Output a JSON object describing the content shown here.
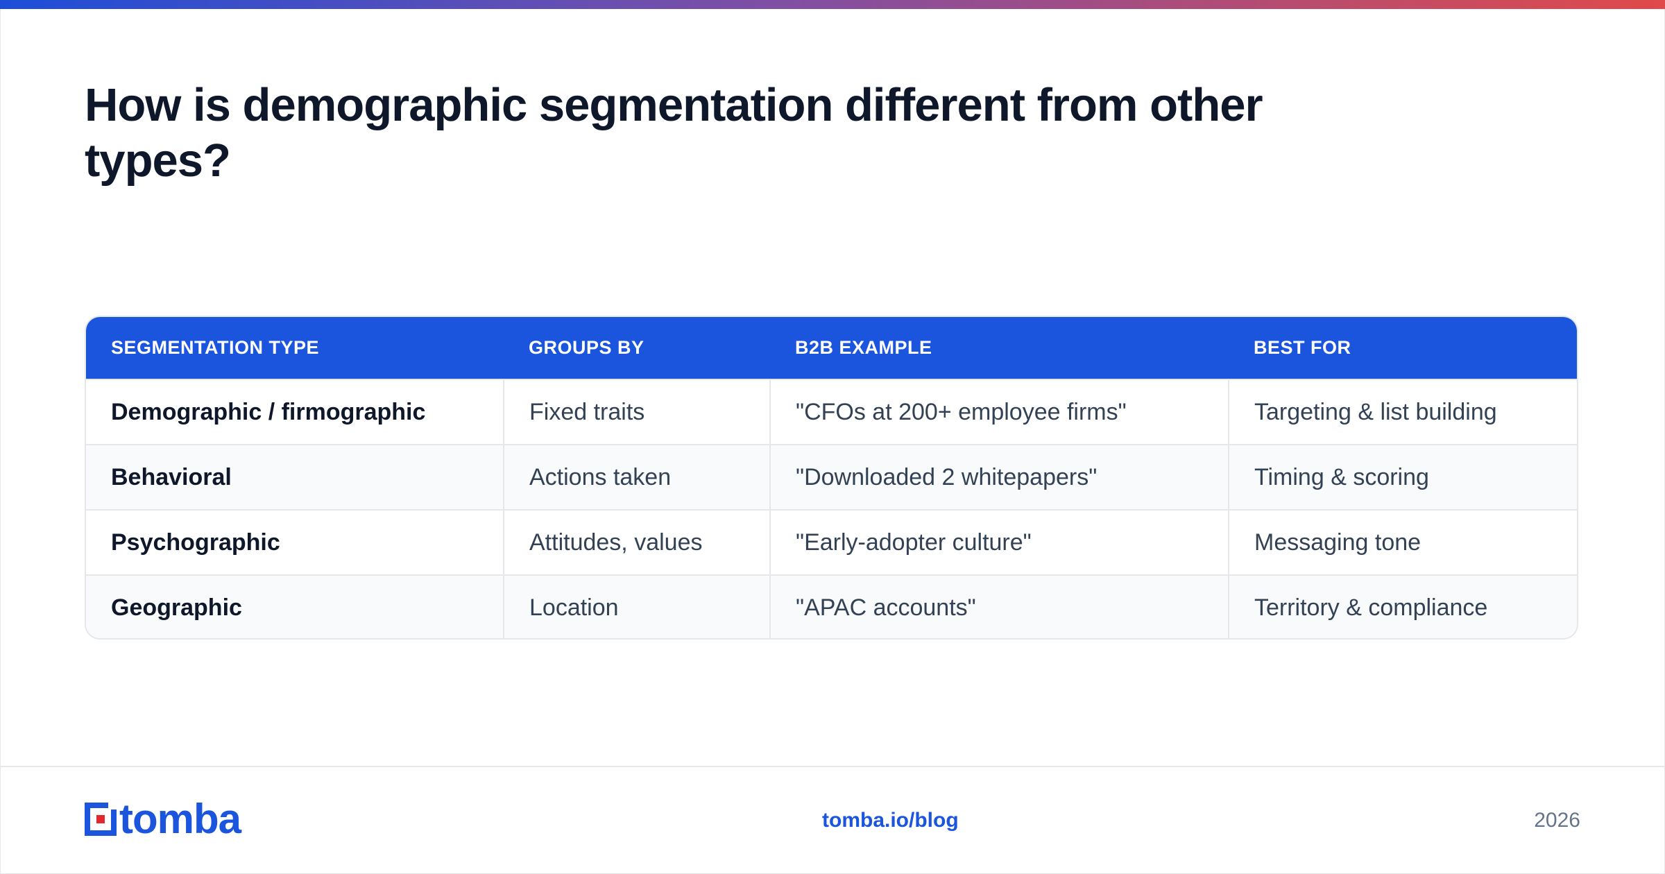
{
  "page": {
    "title": "How is demographic segmentation different from other types?"
  },
  "table": {
    "headers": [
      "SEGMENTATION TYPE",
      "GROUPS BY",
      "B2B EXAMPLE",
      "BEST FOR"
    ],
    "rows": [
      [
        "Demographic / firmographic",
        "Fixed traits",
        "\"CFOs at 200+ employee firms\"",
        "Targeting & list building"
      ],
      [
        "Behavioral",
        "Actions taken",
        "\"Downloaded 2 whitepapers\"",
        "Timing & scoring"
      ],
      [
        "Psychographic",
        "Attitudes, values",
        "\"Early-adopter culture\"",
        "Messaging tone"
      ],
      [
        "Geographic",
        "Location",
        "\"APAC accounts\"",
        "Territory & compliance"
      ]
    ]
  },
  "footer": {
    "logo_text": "tomba",
    "link": "tomba.io/blog",
    "year": "2026"
  },
  "colors": {
    "accent": "#1b55de",
    "logo_red": "#e5262b",
    "gradient_start": "#1d4ed8",
    "gradient_end": "#e04a4a"
  },
  "icons": {
    "logo": "tomba-logo-icon"
  }
}
